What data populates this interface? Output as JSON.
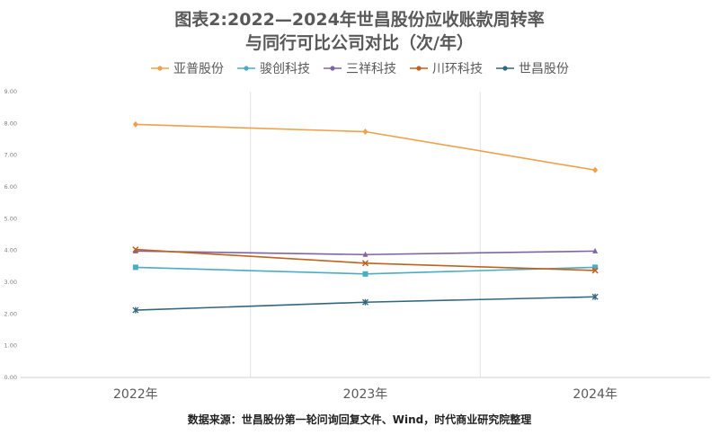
{
  "header": {
    "title_line1": "图表2:2022—2024年世昌股份应收账款周转率",
    "title_line2": "与同行可比公司对比（次/年）"
  },
  "footer": {
    "source": "数据来源：世昌股份第一轮问询回复文件、Wind，时代商业研究院整理"
  },
  "chart_data": {
    "type": "line",
    "title": "图表2:2022—2024年世昌股份应收账款周转率 与同行可比公司对比（次/年）",
    "x": [
      "2022年",
      "2023年",
      "2024年"
    ],
    "ylim": [
      0,
      9
    ],
    "yticks": [
      "0.00",
      "1.00",
      "2.00",
      "3.00",
      "4.00",
      "5.00",
      "6.00",
      "7.00",
      "8.00",
      "9.00"
    ],
    "grid": "vertical",
    "legend": "top",
    "series": [
      {
        "name": "亚普股份",
        "values": [
          7.97,
          7.74,
          6.53
        ],
        "color": "#F0A04B",
        "marker": "diamond"
      },
      {
        "name": "骏创科技",
        "values": [
          3.47,
          3.26,
          3.47
        ],
        "color": "#4BACC6",
        "marker": "square"
      },
      {
        "name": "三祥科技",
        "values": [
          3.98,
          3.87,
          3.98
        ],
        "color": "#8064A2",
        "marker": "triangle"
      },
      {
        "name": "川环科技",
        "values": [
          4.03,
          3.6,
          3.37
        ],
        "color": "#C0611D",
        "marker": "x"
      },
      {
        "name": "世昌股份",
        "values": [
          2.12,
          2.37,
          2.54
        ],
        "color": "#31687F",
        "marker": "star"
      }
    ]
  }
}
